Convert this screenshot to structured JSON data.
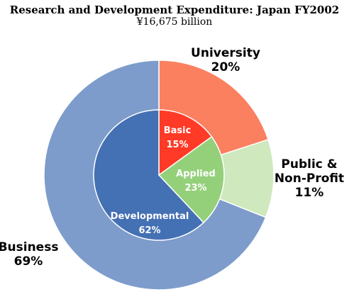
{
  "chart_data": {
    "type": "pie",
    "title": "Research and Development Expenditure: Japan FY2002",
    "subtitle": "¥16,675 billion",
    "outer": {
      "slices": [
        {
          "label_lines": [
            "University",
            "20%"
          ],
          "value": 20,
          "color": "#fa8060"
        },
        {
          "label_lines": [
            "Public &",
            "Non-Profit",
            "11%"
          ],
          "value": 11,
          "color": "#cfe8be"
        },
        {
          "label_lines": [
            "Business",
            "69%"
          ],
          "value": 69,
          "color": "#7d9ccb"
        }
      ]
    },
    "inner": {
      "slices": [
        {
          "label_lines": [
            "Basic",
            "15%"
          ],
          "value": 15,
          "color": "#ff3a27"
        },
        {
          "label_lines": [
            "Applied",
            "23%"
          ],
          "value": 23,
          "color": "#94d07a"
        },
        {
          "label_lines": [
            "Developmental",
            "62%"
          ],
          "value": 62,
          "color": "#4470b4"
        }
      ]
    }
  }
}
